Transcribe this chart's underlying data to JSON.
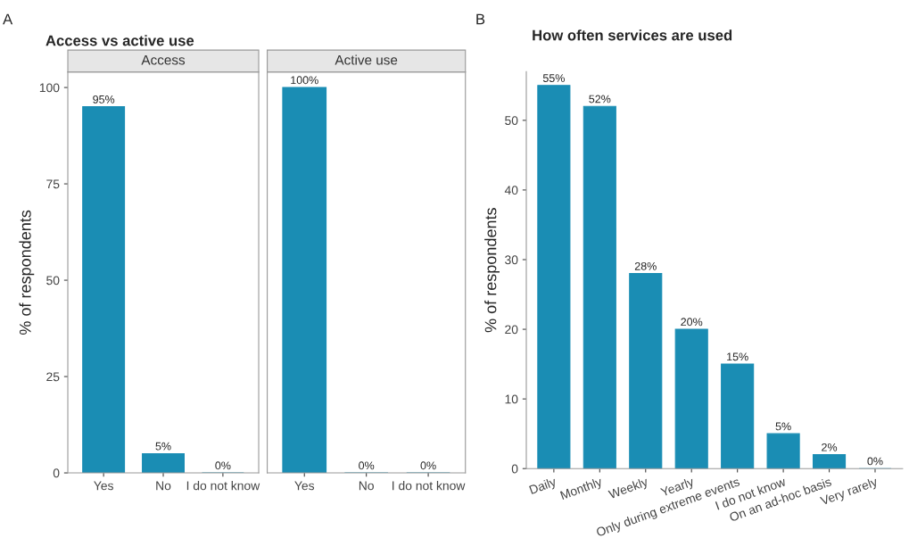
{
  "chart_data": [
    {
      "type": "bar",
      "title": "Access",
      "annotations": [
        "A",
        "Access vs active use"
      ],
      "ylabel": "% of respondents",
      "categories": [
        "Yes",
        "No",
        "I do not know"
      ],
      "values": [
        95,
        5,
        0
      ],
      "value_labels": [
        "95%",
        "5%",
        "0%"
      ],
      "color": "#1a8db4",
      "ylim": [
        0,
        104
      ],
      "yticks": [
        0,
        25,
        50,
        75,
        100
      ],
      "grid": false
    },
    {
      "type": "bar",
      "title": "Active use",
      "categories": [
        "Yes",
        "No",
        "I do not know"
      ],
      "values": [
        100,
        0,
        0
      ],
      "value_labels": [
        "100%",
        "0%",
        "0%"
      ],
      "color": "#1a8db4",
      "ylim": [
        0,
        104
      ],
      "yticks": [
        0,
        25,
        50,
        75,
        100
      ],
      "tick_labels": "x",
      "grid": false
    },
    {
      "type": "bar",
      "title": "How often services are used",
      "annotations": [
        "B"
      ],
      "ylabel": "% of respondents",
      "categories": [
        "Daily",
        "Monthly",
        "Weekly",
        "Yearly",
        "Only during extreme events",
        "I do not know",
        "On an ad-hoc basis",
        "Very rarely"
      ],
      "values": [
        55,
        52,
        28,
        20,
        15,
        5,
        2,
        0
      ],
      "value_labels": [
        "55%",
        "52%",
        "28%",
        "20%",
        "15%",
        "5%",
        "2%",
        "0%"
      ],
      "color": "#1a8db4",
      "ylim": [
        0,
        57
      ],
      "yticks": [
        0,
        10,
        20,
        30,
        40,
        50
      ],
      "grid": false
    }
  ]
}
